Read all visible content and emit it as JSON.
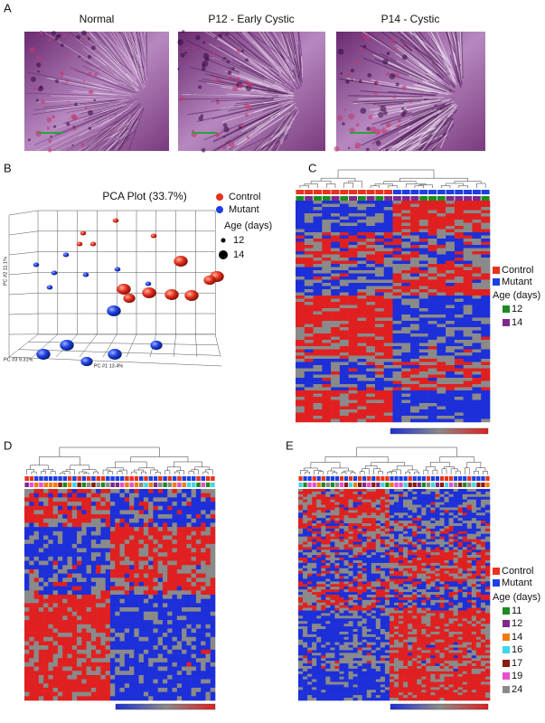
{
  "panels": {
    "A": {
      "label": "A",
      "images": [
        {
          "title": "Normal"
        },
        {
          "title": "P12 - Early Cystic"
        },
        {
          "title": "P14 - Cystic"
        }
      ]
    },
    "B": {
      "label": "B",
      "title": "PCA Plot (33.7%)",
      "groups": [
        {
          "name": "Control",
          "color": "#e8321e"
        },
        {
          "name": "Mutant",
          "color": "#1d3fe0"
        }
      ],
      "size_title": "Age (days)",
      "sizes": [
        "12",
        "14"
      ],
      "x_label": "PC #1 13.4%",
      "y_label": "PC #2 11.1%",
      "z_label": "PC #3 9.31%"
    },
    "C": {
      "label": "C",
      "groups": [
        {
          "name": "Control",
          "color": "#e8321e"
        },
        {
          "name": "Mutant",
          "color": "#1d3fe0"
        }
      ],
      "age_title": "Age (days)",
      "ages": [
        {
          "name": "12",
          "color": "#1f8a1f"
        },
        {
          "name": "14",
          "color": "#7b2a8c"
        }
      ]
    },
    "D": {
      "label": "D"
    },
    "E": {
      "label": "E",
      "groups": [
        {
          "name": "Control",
          "color": "#e8321e"
        },
        {
          "name": "Mutant",
          "color": "#1d3fe0"
        }
      ],
      "age_title": "Age (days)",
      "ages": [
        {
          "name": "11",
          "color": "#1f8a1f"
        },
        {
          "name": "12",
          "color": "#7b2a8c"
        },
        {
          "name": "14",
          "color": "#f07c10"
        },
        {
          "name": "16",
          "color": "#3fd6e8"
        },
        {
          "name": "17",
          "color": "#8b1a0a"
        },
        {
          "name": "19",
          "color": "#e84fd0"
        },
        {
          "name": "24",
          "color": "#8a8a8a"
        }
      ]
    }
  }
}
